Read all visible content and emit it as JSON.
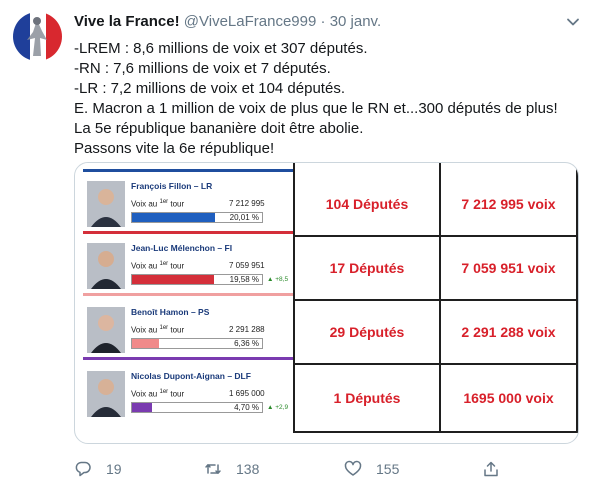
{
  "tweet": {
    "display_name": "Vive la France!",
    "handle": "@ViveLaFrance999",
    "separator": "·",
    "date": "30 janv.",
    "lines": [
      "-LREM : 8,6 millions de voix et 307 députés.",
      "-RN : 7,6 millions de voix et 7 députés.",
      "-LR : 7,2 millions de voix et 104 députés.",
      "E. Macron a 1 million de voix de plus que le RN et...300 députés de plus!",
      "La 5e république bananière doit être abolie.",
      "Passons vite la 6e république!"
    ]
  },
  "media": {
    "candidates": [
      {
        "name": "François Fillon – LR",
        "votes_label": "Voix au",
        "votes_sup": "1er",
        "votes_tour": " tour",
        "votes": "7 212 995",
        "percent": "20,01 %",
        "fill_ratio": 0.2,
        "delta": "",
        "color": "#1f5fbf"
      },
      {
        "name": "Jean-Luc Mélenchon – FI",
        "votes_label": "Voix au",
        "votes_sup": "1er",
        "votes_tour": " tour",
        "votes": "7 059 951",
        "percent": "19,58 %",
        "fill_ratio": 0.196,
        "delta": "▲ +8,5",
        "color": "#d42f3a"
      },
      {
        "name": "Benoît Hamon – PS",
        "votes_label": "Voix au",
        "votes_sup": "1er",
        "votes_tour": " tour",
        "votes": "2 291 288",
        "percent": "6,36 %",
        "fill_ratio": 0.064,
        "delta": "",
        "color": "#f08a8a"
      },
      {
        "name": "Nicolas Dupont-Aignan – DLF",
        "votes_label": "Voix au",
        "votes_sup": "1er",
        "votes_tour": " tour",
        "votes": "1 695 000",
        "percent": "4,70 %",
        "fill_ratio": 0.047,
        "delta": "▲ +2,9",
        "color": "#7a3bb0"
      }
    ],
    "rows": [
      {
        "deputes": "104  Députés",
        "voix": "7 212 995 voix"
      },
      {
        "deputes": "17  Députés",
        "voix": "7 059 951 voix"
      },
      {
        "deputes": "29  Députés",
        "voix": "2 291 288 voix"
      },
      {
        "deputes": "1  Députés",
        "voix": "1695 000 voix"
      }
    ]
  },
  "actions": {
    "reply_count": "19",
    "retweet_count": "138",
    "like_count": "155"
  },
  "colors": {
    "text": "#14171a",
    "secondary": "#657786",
    "table_text": "#d8202a",
    "accent_blue": "#1f4e9e"
  }
}
